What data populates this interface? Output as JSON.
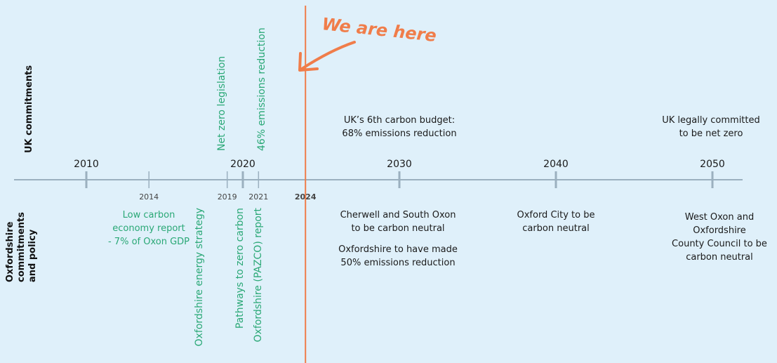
{
  "side_labels": {
    "uk": "UK commitments",
    "oxon": [
      "Oxfordshire",
      "commitments",
      "and policy"
    ]
  },
  "marker": {
    "label": "We are here",
    "year": 2024
  },
  "timeline": {
    "major_years": [
      2010,
      2020,
      2030,
      2040,
      2050
    ],
    "minor_years": [
      2014,
      2019,
      2021,
      2024
    ]
  },
  "uk_events": {
    "vertical": [
      "Net zero legislation",
      "46% emissions reduction"
    ],
    "carbon_budget": [
      "UK’s 6th carbon budget:",
      "68% emissions reduction"
    ],
    "net_zero": [
      "UK legally committed",
      "to be net zero"
    ]
  },
  "oxon_events": {
    "low_carbon": [
      "Low carbon",
      "economy report",
      "- 7% of Oxon GDP"
    ],
    "vertical": [
      "Oxfordshire energy strategy",
      "Pathways to zero carbon",
      "Oxfordshire (PAZCO) report"
    ],
    "cherwell": [
      "Cherwell and South Oxon",
      "to be carbon neutral"
    ],
    "fifty": [
      "Oxfordshire to have made",
      "50% emissions reduction"
    ],
    "oxford_city": [
      "Oxford City to be",
      "carbon neutral"
    ],
    "west_oxon": [
      "West Oxon and",
      "Oxfordshire",
      "County Council to be",
      "carbon neutral"
    ]
  }
}
